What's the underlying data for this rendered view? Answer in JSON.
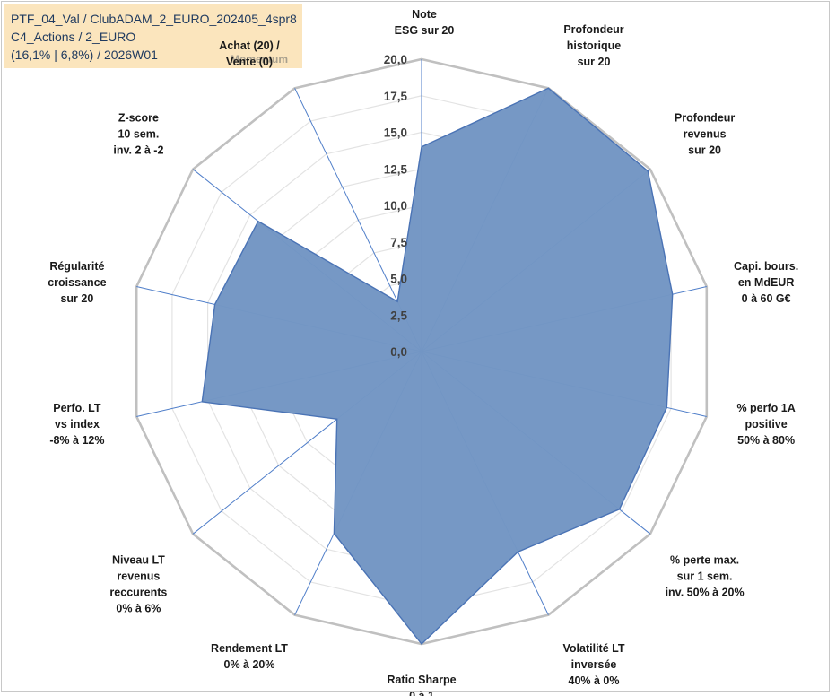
{
  "info_box": {
    "line1": "PTF_04_Val / ClubADAM_2_EURO_202405_4spr8",
    "line2": "C4_Actions / 2_EURO",
    "line3": "(16,1% | 6,8%) / 2026W01",
    "momentum_label": "Momentum"
  },
  "colors": {
    "fill": "#7396c4",
    "stroke": "#4a73b5",
    "grid_outer": "#c0c0c0",
    "grid_inner": "#e3e3e3",
    "spoke": "#4f7ec9",
    "info_bg": "#fbe5bd"
  },
  "chart_data": {
    "type": "radar",
    "rmax": 20,
    "ticks": [
      "0,0",
      "2,5",
      "5,0",
      "7,5",
      "10,0",
      "12,5",
      "15,0",
      "17,5",
      "20,0"
    ],
    "axes": [
      [
        "Note",
        "ESG sur 20"
      ],
      [
        "Profondeur",
        "historique",
        "sur 20"
      ],
      [
        "Profondeur",
        "revenus",
        "sur 20"
      ],
      [
        "Capi. bours.",
        "en MdEUR",
        "0 à 60 G€"
      ],
      [
        "% perfo 1A",
        "positive",
        "50% à 80%"
      ],
      [
        "% perte max.",
        "sur 1 sem.",
        "inv. 50% à 20%"
      ],
      [
        "Volatilité LT",
        "inversée",
        "40% à 0%"
      ],
      [
        "Ratio Sharpe",
        "0 à 1"
      ],
      [
        "Rendement LT",
        "0% à 20%"
      ],
      [
        "Niveau LT",
        "revenus",
        "reccurents",
        "0% à 6%"
      ],
      [
        "Perfo. LT",
        "vs index",
        "-8% à 12%"
      ],
      [
        "Régularité",
        "croissance",
        "sur 20"
      ],
      [
        "Z-score",
        "10 sem.",
        "inv. 2 à -2"
      ],
      [
        "Achat (20) /",
        "Vente (0)"
      ]
    ],
    "values": [
      14.0,
      20.0,
      19.8,
      17.6,
      17.2,
      17.3,
      15.2,
      20.0,
      13.8,
      7.4,
      15.4,
      14.5,
      14.3,
      3.8
    ]
  }
}
